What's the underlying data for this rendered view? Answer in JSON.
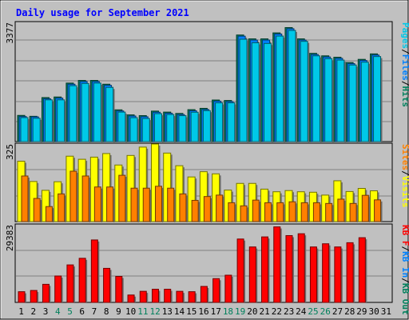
{
  "chart_data": {
    "type": "bar",
    "title": "Daily usage for September 2021",
    "categories": [
      "1",
      "2",
      "3",
      "4",
      "5",
      "6",
      "7",
      "8",
      "9",
      "10",
      "11",
      "12",
      "13",
      "14",
      "15",
      "16",
      "17",
      "18",
      "19",
      "20",
      "21",
      "22",
      "23",
      "24",
      "25",
      "26",
      "27",
      "28",
      "29",
      "30",
      "31"
    ],
    "weekend_days": [
      "4",
      "5",
      "11",
      "12",
      "18",
      "19",
      "25",
      "26"
    ],
    "panels": [
      {
        "id": "pages-files-hits",
        "ymax_label": "3377",
        "ylim": [
          0,
          3377
        ],
        "legend": [
          {
            "text": "Pages",
            "color": "#00c8e8"
          },
          {
            "text": "/",
            "color": "#000000"
          },
          {
            "text": "Files",
            "color": "#0080ff"
          },
          {
            "text": "/",
            "color": "#000000"
          },
          {
            "text": "Hits",
            "color": "#00805c"
          }
        ],
        "series": [
          {
            "name": "Hits",
            "color": "#00805c",
            "values": [
              742,
              717,
              1247,
              1264,
              1658,
              1733,
              1733,
              1626,
              900,
              757,
              736,
              864,
              836,
              798,
              905,
              942,
              1178,
              1165,
              3020,
              2910,
              2910,
              3080,
              3230,
              2910,
              2500,
              2430,
              2390,
              2240,
              2330,
              2485,
              null
            ]
          },
          {
            "name": "Files",
            "color": "#0080ff",
            "values": [
              710,
              700,
              1214,
              1232,
              1626,
              1701,
              1701,
              1594,
              868,
              725,
              704,
              832,
              804,
              766,
              873,
              910,
              1146,
              1133,
              2987,
              2877,
              2877,
              3048,
              3198,
              2877,
              2467,
              2398,
              2358,
              2208,
              2298,
              2453,
              null
            ]
          },
          {
            "name": "Pages",
            "color": "#00c8e8",
            "values": [
              680,
              661,
              1183,
              1183,
              1584,
              1647,
              1658,
              1536,
              836,
              678,
              655,
              792,
              768,
              735,
              832,
              878,
              1098,
              1098,
              2900,
              2800,
              2780,
              2990,
              3150,
              2840,
              2430,
              2350,
              2310,
              2170,
              2250,
              2410,
              null
            ]
          }
        ]
      },
      {
        "id": "sites-visits",
        "ymax_label": "325",
        "ylim": [
          0,
          325
        ],
        "legend": [
          {
            "text": "Sites",
            "color": "#ff8000"
          },
          {
            "text": "/",
            "color": "#000000"
          },
          {
            "text": "Visits",
            "color": "#ffff00"
          }
        ],
        "series": [
          {
            "name": "Visits",
            "color": "#ffff00",
            "values": [
              253,
              168,
              131,
              167,
              274,
              261,
              270,
              285,
              237,
              277,
              312,
              325,
              287,
              234,
              187,
              209,
              200,
              132,
              160,
              160,
              136,
              125,
              130,
              125,
              123,
              111,
              171,
              126,
              139,
              129,
              null
            ]
          },
          {
            "name": "Sites",
            "color": "#ff8000",
            "values": [
              191,
              97,
              63,
              116,
              211,
              191,
              145,
              145,
              194,
              140,
              140,
              148,
              140,
              116,
              89,
              105,
              111,
              79,
              66,
              90,
              79,
              79,
              83,
              79,
              79,
              76,
              94,
              76,
              110,
              91,
              null
            ]
          }
        ]
      },
      {
        "id": "kbf-kbin-kbout",
        "ymax_label": "29383",
        "ylim": [
          0,
          29383
        ],
        "legend": [
          {
            "text": "KB F",
            "color": "#ff0000"
          },
          {
            "text": "/",
            "color": "#000000"
          },
          {
            "text": "KB In",
            "color": "#0080ff"
          },
          {
            "text": "/",
            "color": "#000000"
          },
          {
            "text": "KB Out",
            "color": "#00805c"
          }
        ],
        "series": [
          {
            "name": "KB F",
            "color": "#ff0000",
            "values": [
              4050,
              4520,
              6850,
              10000,
              14200,
              16700,
              23650,
              12900,
              9850,
              2800,
              4200,
              4980,
              4980,
              4200,
              4050,
              6050,
              9000,
              10300,
              24000,
              21000,
              24800,
              28600,
              25300,
              26000,
              21000,
              22200,
              21000,
              22600,
              24500,
              null,
              null
            ]
          }
        ]
      }
    ]
  }
}
